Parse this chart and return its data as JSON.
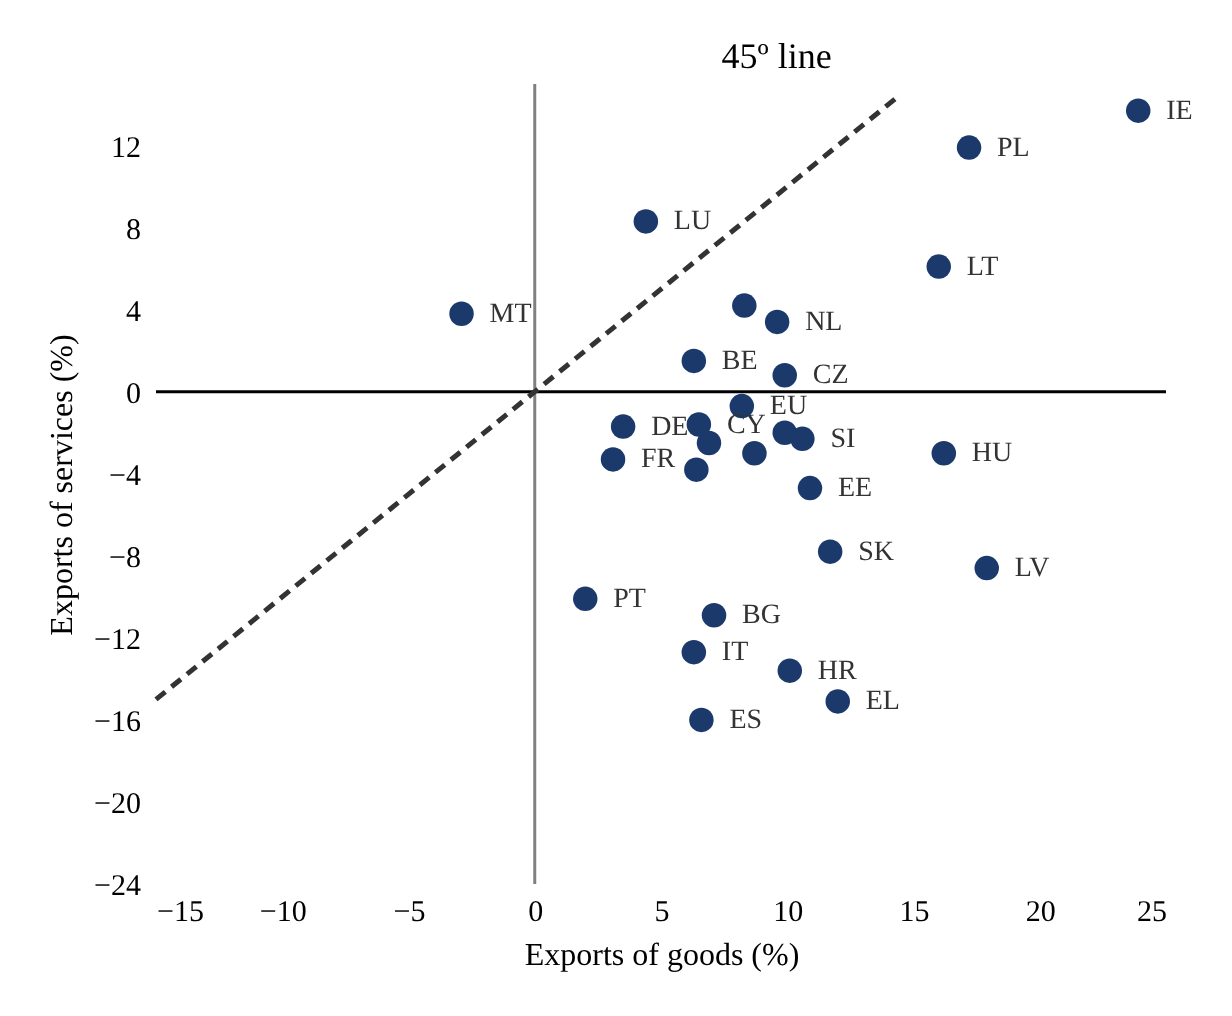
{
  "chart_data": {
    "type": "scatter",
    "xlabel": "Exports of goods (%)",
    "ylabel": "Exports of services (%)",
    "xlim": [
      -15,
      25
    ],
    "ylim": [
      -24,
      15
    ],
    "xticks": [
      -15,
      -10,
      -5,
      0,
      5,
      10,
      15,
      20,
      25
    ],
    "yticks": [
      -24,
      -20,
      -16,
      -12,
      -8,
      -4,
      0,
      4,
      8,
      12
    ],
    "grid": false,
    "marker": "circle",
    "ref_lines": [
      {
        "axis": "y",
        "value": 0,
        "color": "#000000"
      },
      {
        "axis": "x",
        "value": 0,
        "color": "#808080"
      }
    ],
    "series": [
      {
        "color": "#1b3a6b",
        "x": [
          23.9,
          17.2,
          4.4,
          16.0,
          8.3,
          9.6,
          6.3,
          9.9,
          8.2,
          3.5,
          6.5,
          6.9,
          3.1,
          6.4,
          8.7,
          9.9,
          10.6,
          16.2,
          10.9,
          11.7,
          17.9,
          2.0,
          7.1,
          6.3,
          10.1,
          12.0,
          6.6,
          -2.9
        ],
        "values": [
          13.7,
          11.9,
          8.3,
          6.1,
          4.2,
          3.4,
          1.5,
          0.8,
          -0.7,
          -1.7,
          -1.6,
          -2.5,
          -3.3,
          -3.8,
          -3.0,
          -2.0,
          -2.3,
          -3.0,
          -4.7,
          -7.8,
          -8.6,
          -10.1,
          -10.9,
          -12.7,
          -13.6,
          -15.1,
          -16.0,
          3.8
        ]
      },
      {
        "type": "line",
        "color": "#333333",
        "line_style": "dashed",
        "marker": "none",
        "x": [
          -15,
          14.5
        ],
        "values": [
          -15,
          14.5
        ]
      }
    ],
    "annotations": [
      "45º line",
      {
        "text": "IE",
        "x": 23.9,
        "y": 13.7
      },
      {
        "text": "PL",
        "x": 17.2,
        "y": 11.9
      },
      {
        "text": "LU",
        "x": 4.4,
        "y": 8.3
      },
      {
        "text": "LT",
        "x": 16.0,
        "y": 6.1
      },
      {
        "text": "NL",
        "x": 9.6,
        "y": 3.4
      },
      {
        "text": "BE",
        "x": 6.3,
        "y": 1.5
      },
      {
        "text": "CZ",
        "x": 9.9,
        "y": 0.8
      },
      {
        "text": "EU",
        "x": 8.2,
        "y": -0.7
      },
      {
        "text": "DE",
        "x": 3.5,
        "y": -1.7
      },
      {
        "text": "CY",
        "x": 6.5,
        "y": -1.6
      },
      {
        "text": "FR",
        "x": 3.1,
        "y": -3.3
      },
      {
        "text": "SI",
        "x": 10.6,
        "y": -2.3
      },
      {
        "text": "HU",
        "x": 16.2,
        "y": -3.0
      },
      {
        "text": "EE",
        "x": 10.9,
        "y": -4.7
      },
      {
        "text": "SK",
        "x": 11.7,
        "y": -7.8
      },
      {
        "text": "LV",
        "x": 17.9,
        "y": -8.6
      },
      {
        "text": "PT",
        "x": 2.0,
        "y": -10.1
      },
      {
        "text": "BG",
        "x": 7.1,
        "y": -10.9
      },
      {
        "text": "IT",
        "x": 6.3,
        "y": -12.7
      },
      {
        "text": "HR",
        "x": 10.1,
        "y": -13.6
      },
      {
        "text": "EL",
        "x": 12.0,
        "y": -15.1
      },
      {
        "text": "ES",
        "x": 6.6,
        "y": -16.0
      },
      {
        "text": "MT",
        "x": -2.9,
        "y": 3.8
      }
    ]
  }
}
